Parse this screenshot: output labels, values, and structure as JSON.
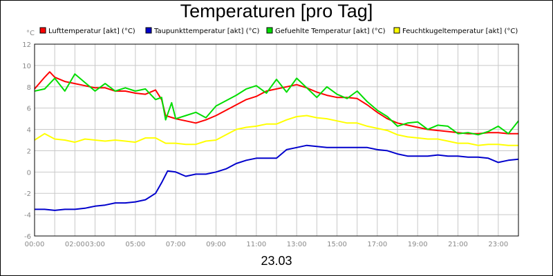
{
  "chart": {
    "title": "Temperaturen [pro Tag]",
    "date_label": "23.03",
    "unit_label": "°C"
  },
  "chart_data": {
    "type": "line",
    "title": "Temperaturen [pro Tag]",
    "xlabel": "23.03",
    "ylabel": "°C",
    "ylim": [
      -6,
      12
    ],
    "yticks": [
      "-6",
      "-4",
      "-2",
      "0",
      "2",
      "4",
      "6",
      "8",
      "10",
      "12"
    ],
    "xlim": [
      0,
      24
    ],
    "xticks": [
      "00:00",
      "02:00",
      "03:00",
      "05:00",
      "07:00",
      "09:00",
      "11:00",
      "13:00",
      "15:00",
      "17:00",
      "19:00",
      "21:00",
      "23:00"
    ],
    "grid": true,
    "legend_position": "top",
    "series": [
      {
        "name": "Lufttemperatur [akt] (°C)",
        "color": "#ff0000",
        "x": [
          0,
          0.5,
          0.75,
          1,
          1.5,
          2,
          2.5,
          3,
          3.5,
          4,
          4.5,
          5,
          5.5,
          6,
          6.3,
          6.5,
          7,
          7.5,
          8,
          8.5,
          9,
          9.5,
          10,
          10.5,
          11,
          11.5,
          12,
          12.5,
          13,
          13.5,
          14,
          14.5,
          15,
          15.5,
          16,
          16.5,
          17,
          17.5,
          18,
          18.5,
          19,
          19.5,
          20,
          20.5,
          21,
          21.5,
          22,
          22.5,
          23,
          23.5,
          24
        ],
        "values": [
          7.8,
          8.9,
          9.4,
          8.9,
          8.5,
          8.3,
          8.1,
          7.9,
          7.9,
          7.6,
          7.6,
          7.4,
          7.3,
          7.7,
          6.8,
          5.3,
          5.0,
          4.8,
          4.6,
          4.9,
          5.3,
          5.8,
          6.3,
          6.8,
          7.1,
          7.6,
          7.8,
          8.0,
          8.2,
          7.9,
          7.5,
          7.2,
          7.0,
          7.0,
          6.9,
          6.3,
          5.6,
          5.0,
          4.6,
          4.4,
          4.2,
          4.0,
          3.9,
          3.8,
          3.7,
          3.6,
          3.6,
          3.7,
          3.7,
          3.6,
          3.6
        ]
      },
      {
        "name": "Taupunkttemperatur [akt] (°C)",
        "color": "#0000cc",
        "x": [
          0,
          0.5,
          1,
          1.5,
          2,
          2.5,
          3,
          3.5,
          4,
          4.5,
          5,
          5.5,
          6,
          6.3,
          6.6,
          7,
          7.5,
          8,
          8.5,
          9,
          9.5,
          10,
          10.5,
          11,
          11.5,
          12,
          12.5,
          13,
          13.5,
          14,
          14.5,
          15,
          15.5,
          16,
          16.5,
          17,
          17.5,
          18,
          18.5,
          19,
          19.5,
          20,
          20.5,
          21,
          21.5,
          22,
          22.5,
          23,
          23.5,
          24
        ],
        "values": [
          -3.5,
          -3.5,
          -3.6,
          -3.5,
          -3.5,
          -3.4,
          -3.2,
          -3.1,
          -2.9,
          -2.9,
          -2.8,
          -2.6,
          -2.0,
          -1.0,
          0.1,
          0.0,
          -0.4,
          -0.2,
          -0.2,
          0.0,
          0.3,
          0.8,
          1.1,
          1.3,
          1.3,
          1.3,
          2.1,
          2.3,
          2.5,
          2.4,
          2.3,
          2.3,
          2.3,
          2.3,
          2.3,
          2.1,
          2.0,
          1.7,
          1.5,
          1.5,
          1.5,
          1.6,
          1.5,
          1.5,
          1.4,
          1.4,
          1.3,
          0.9,
          1.1,
          1.2
        ]
      },
      {
        "name": "Gefuehlte Temperatur [akt] (°C)",
        "color": "#00dd00",
        "x": [
          0,
          0.5,
          1,
          1.5,
          2,
          2.5,
          3,
          3.5,
          4,
          4.5,
          5,
          5.5,
          6,
          6.3,
          6.5,
          6.8,
          7,
          7.5,
          8,
          8.5,
          9,
          9.5,
          10,
          10.5,
          11,
          11.5,
          12,
          12.5,
          13,
          13.5,
          14,
          14.5,
          15,
          15.5,
          16,
          16.5,
          17,
          17.5,
          18,
          18.5,
          19,
          19.5,
          20,
          20.5,
          21,
          21.5,
          22,
          22.5,
          23,
          23.5,
          24
        ],
        "values": [
          7.6,
          7.8,
          8.8,
          7.6,
          9.2,
          8.4,
          7.6,
          8.3,
          7.6,
          7.9,
          7.6,
          7.8,
          6.8,
          7.0,
          4.9,
          6.5,
          5.0,
          5.3,
          5.6,
          5.1,
          6.2,
          6.7,
          7.2,
          7.8,
          8.1,
          7.4,
          8.7,
          7.5,
          8.8,
          7.9,
          7.0,
          8.0,
          7.3,
          6.9,
          7.6,
          6.6,
          5.8,
          5.2,
          4.3,
          4.6,
          4.7,
          4.0,
          4.4,
          4.3,
          3.6,
          3.7,
          3.5,
          3.8,
          4.3,
          3.6,
          4.8
        ]
      },
      {
        "name": "Feuchtkugeltemperatur [akt] (°C)",
        "color": "#ffff00",
        "x": [
          0,
          0.5,
          1,
          1.5,
          2,
          2.5,
          3,
          3.5,
          4,
          4.5,
          5,
          5.5,
          6,
          6.5,
          7,
          7.5,
          8,
          8.5,
          9,
          9.5,
          10,
          10.5,
          11,
          11.5,
          12,
          12.5,
          13,
          13.5,
          14,
          14.5,
          15,
          15.5,
          16,
          16.5,
          17,
          17.5,
          18,
          18.5,
          19,
          19.5,
          20,
          20.5,
          21,
          21.5,
          22,
          22.5,
          23,
          23.5,
          24
        ],
        "values": [
          3.0,
          3.6,
          3.1,
          3.0,
          2.8,
          3.1,
          3.0,
          2.9,
          3.0,
          2.9,
          2.8,
          3.2,
          3.2,
          2.7,
          2.7,
          2.6,
          2.6,
          2.9,
          3.0,
          3.5,
          4.0,
          4.2,
          4.3,
          4.5,
          4.5,
          4.9,
          5.2,
          5.3,
          5.1,
          5.0,
          4.8,
          4.6,
          4.6,
          4.3,
          4.1,
          3.9,
          3.5,
          3.3,
          3.2,
          3.1,
          3.1,
          2.9,
          2.7,
          2.7,
          2.5,
          2.6,
          2.6,
          2.5,
          2.5
        ]
      }
    ]
  }
}
